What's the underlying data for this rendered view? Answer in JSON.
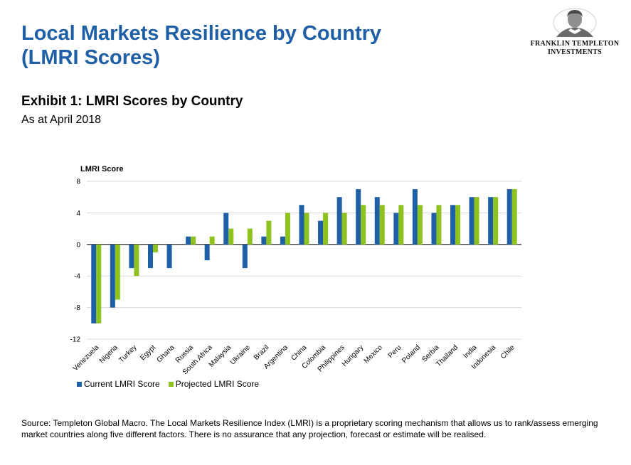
{
  "header": {
    "title_line1": "Local Markets Resilience by Country",
    "title_line2": "(LMRI Scores)"
  },
  "logo": {
    "line1": "FRANKLIN TEMPLETON",
    "line2": "INVESTMENTS",
    "icon": "portrait-medallion-icon"
  },
  "exhibit": {
    "title": "Exhibit 1: LMRI Scores by Country",
    "subtitle": "As at April 2018"
  },
  "colors": {
    "title": "#1f5fa5",
    "current": "#1f5fa5",
    "projected": "#8dc21f"
  },
  "chart_data": {
    "type": "bar",
    "ylabel": "LMRI Score",
    "xlabel": "",
    "ylim": [
      -12,
      8
    ],
    "yticks": [
      8,
      4,
      0,
      -4,
      -8,
      -12
    ],
    "grid": true,
    "legend_position": "bottom-left",
    "categories": [
      "Venezuela",
      "Nigeria",
      "Turkey",
      "Egypt",
      "Ghana",
      "Russia",
      "South Africa",
      "Malaysia",
      "Ukraine",
      "Brazil",
      "Argentina",
      "China",
      "Colombia",
      "Philippines",
      "Hungary",
      "Mexico",
      "Peru",
      "Poland",
      "Serbia",
      "Thailand",
      "India",
      "Indonesia",
      "Chile"
    ],
    "series": [
      {
        "name": "Current LMRI Score",
        "values": [
          -10,
          -8,
          -3,
          -3,
          -3,
          1,
          -2,
          4,
          -3,
          1,
          1,
          5,
          3,
          6,
          7,
          6,
          4,
          7,
          4,
          5,
          6,
          6,
          7
        ]
      },
      {
        "name": "Projected LMRI Score",
        "values": [
          -10,
          -7,
          -4,
          -1,
          0,
          1,
          1,
          2,
          2,
          3,
          4,
          4,
          4,
          4,
          5,
          5,
          5,
          5,
          5,
          5,
          6,
          6,
          7
        ]
      }
    ]
  },
  "source": "Source: Templeton Global Macro. The Local Markets Resilience Index (LMRI) is a proprietary scoring mechanism that allows us to rank/assess emerging market countries along five different factors. There is no assurance that any projection, forecast or estimate will be realised."
}
